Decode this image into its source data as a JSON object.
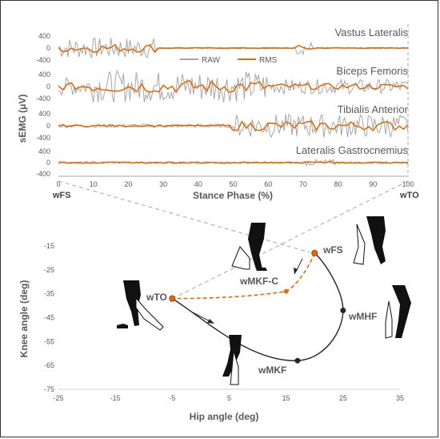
{
  "top_panel": {
    "ylabel": "sEMG (μV)",
    "xlabel": "Stance Phase (%)",
    "x_ticks": [
      "0",
      "10",
      "20",
      "30",
      "40",
      "50",
      "60",
      "70",
      "80",
      "90",
      "100"
    ],
    "x_start_label": "wFS",
    "x_end_label": "wTO",
    "legend": {
      "raw": "RAW",
      "rms": "RMS"
    },
    "muscles": [
      {
        "name": "Vastus Lateralis",
        "y_ticks": [
          "400",
          "0",
          "-400"
        ]
      },
      {
        "name": "Biceps Femoris",
        "y_ticks": [
          "400",
          "0",
          "-400"
        ]
      },
      {
        "name": "Tibialis Anterior",
        "y_ticks": [
          "400",
          "0",
          "-400"
        ]
      },
      {
        "name": "Lateralis Gastrocnemius",
        "y_ticks": [
          "400",
          "0",
          "-400"
        ]
      }
    ]
  },
  "bottom_panel": {
    "xlabel": "Hip angle (deg)",
    "ylabel": "Knee angle (deg)",
    "x_ticks": [
      "-25",
      "-15",
      "-5",
      "5",
      "15",
      "25",
      "35"
    ],
    "y_ticks": [
      "-15",
      "-25",
      "-35",
      "-45",
      "-55",
      "-65",
      "-75"
    ],
    "points": {
      "wTO": "wTO",
      "wFS": "wFS",
      "wMKF": "wMKF",
      "wMHF": "wMHF",
      "wMKF-C": "wMKF-C"
    }
  },
  "chart_data": [
    {
      "type": "line",
      "x": [
        0,
        100
      ],
      "xlabel": "Stance Phase (%)",
      "ylabel": "sEMG (μV)",
      "xlim": [
        0,
        100
      ],
      "ylim": [
        -400,
        400
      ],
      "series": [
        {
          "name": "RAW",
          "color": "#a6a6a6"
        },
        {
          "name": "RMS",
          "color": "#e36c0a"
        }
      ],
      "panels": [
        "Vastus Lateralis",
        "Biceps Femoris",
        "Tibialis Anterior",
        "Lateralis Gastrocnemius"
      ],
      "grid": false,
      "legend_position": "top-center"
    },
    {
      "type": "line",
      "xlabel": "Hip angle (deg)",
      "ylabel": "Knee angle (deg)",
      "xlim": [
        -25,
        35
      ],
      "ylim": [
        -75,
        -15
      ],
      "grid": false,
      "series": [
        {
          "color": "#262626",
          "style": "solid",
          "points": [
            {
              "label": "wTO",
              "x": -5,
              "y": -37
            },
            {
              "label": "wMKF",
              "x": 17,
              "y": -63
            },
            {
              "label": "wMHF",
              "x": 25,
              "y": -42
            },
            {
              "label": "wFS",
              "x": 20,
              "y": -18
            }
          ]
        },
        {
          "color": "#e36c0a",
          "style": "dashed",
          "points": [
            {
              "label": "wFS",
              "x": 20,
              "y": -18
            },
            {
              "label": "wMKF-C",
              "x": 15,
              "y": -34
            },
            {
              "label": "wTO",
              "x": -5,
              "y": -37
            }
          ]
        }
      ]
    }
  ]
}
